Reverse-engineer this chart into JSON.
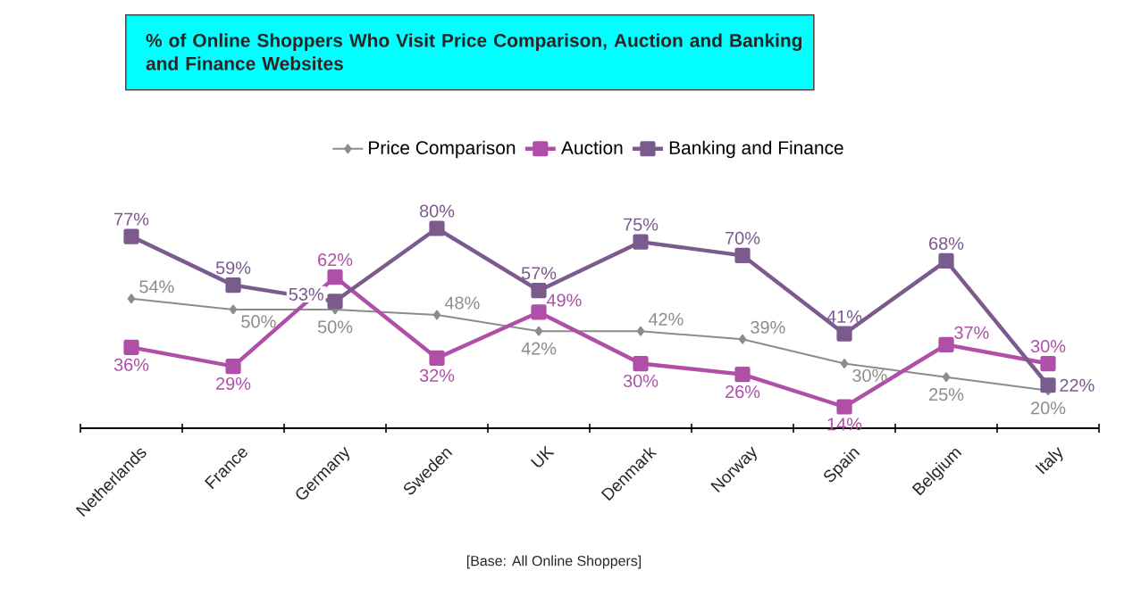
{
  "chart_data": {
    "type": "line",
    "title": "% of Online Shoppers Who Visit Price Comparison, Auction and Banking and Finance Websites",
    "categories": [
      "Netherlands",
      "France",
      "Germany",
      "Sweden",
      "UK",
      "Denmark",
      "Norway",
      "Spain",
      "Belgium",
      "Italy"
    ],
    "series": [
      {
        "name": "Price Comparison",
        "color": "#8c8c8c",
        "marker": "diamond",
        "values": [
          54,
          50,
          50,
          48,
          42,
          42,
          39,
          30,
          25,
          20
        ],
        "value_labels": [
          "54%",
          "50%",
          "50%",
          "48%",
          "42%",
          "42%",
          "39%",
          "30%",
          "25%",
          "20%"
        ]
      },
      {
        "name": "Auction",
        "color": "#b04fa8",
        "marker": "square",
        "values": [
          36,
          29,
          62,
          32,
          49,
          30,
          26,
          14,
          37,
          30
        ],
        "value_labels": [
          "36%",
          "29%",
          "62%",
          "32%",
          "49%",
          "30%",
          "26%",
          "14%",
          "37%",
          "30%"
        ]
      },
      {
        "name": "Banking and Finance",
        "color": "#7b5a8e",
        "marker": "square",
        "values": [
          77,
          59,
          53,
          80,
          57,
          75,
          70,
          41,
          68,
          22
        ],
        "value_labels": [
          "77%",
          "59%",
          "53%",
          "80%",
          "57%",
          "75%",
          "70%",
          "41%",
          "68%",
          "22%"
        ]
      }
    ],
    "legend": "top",
    "grid": false,
    "annotations": [
      "[Base: All Online Shoppers]"
    ]
  }
}
